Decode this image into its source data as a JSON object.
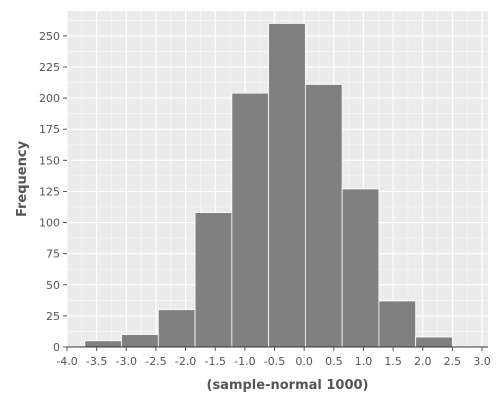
{
  "chart_data": {
    "type": "bar",
    "subtype": "histogram",
    "xlabel": "(sample-normal 1000)",
    "ylabel": "Frequency",
    "xlim": [
      -4.0,
      3.1
    ],
    "ylim": [
      0,
      270
    ],
    "grid": true,
    "x_ticks": [
      "-4.0",
      "-3.5",
      "-3.0",
      "-2.5",
      "-2.0",
      "-1.5",
      "-1.0",
      "-0.5",
      "0.0",
      "0.5",
      "1.0",
      "1.5",
      "2.0",
      "2.5",
      "3.0"
    ],
    "y_ticks": [
      "0",
      "25",
      "50",
      "75",
      "100",
      "125",
      "150",
      "175",
      "200",
      "225",
      "250"
    ],
    "bins": [
      {
        "start": -3.7,
        "end": -3.08,
        "count": 5
      },
      {
        "start": -3.08,
        "end": -2.46,
        "count": 10
      },
      {
        "start": -2.46,
        "end": -1.84,
        "count": 30
      },
      {
        "start": -1.84,
        "end": -1.22,
        "count": 108
      },
      {
        "start": -1.22,
        "end": -0.6,
        "count": 204
      },
      {
        "start": -0.6,
        "end": 0.02,
        "count": 260
      },
      {
        "start": 0.02,
        "end": 0.64,
        "count": 211
      },
      {
        "start": 0.64,
        "end": 1.26,
        "count": 127
      },
      {
        "start": 1.26,
        "end": 1.88,
        "count": 37
      },
      {
        "start": 1.88,
        "end": 2.5,
        "count": 8
      }
    ],
    "colors": {
      "bar": "#808080",
      "bar_edge": "#ffffff",
      "panel": "#ebebeb",
      "grid": "#ffffff",
      "text": "#555555"
    }
  }
}
